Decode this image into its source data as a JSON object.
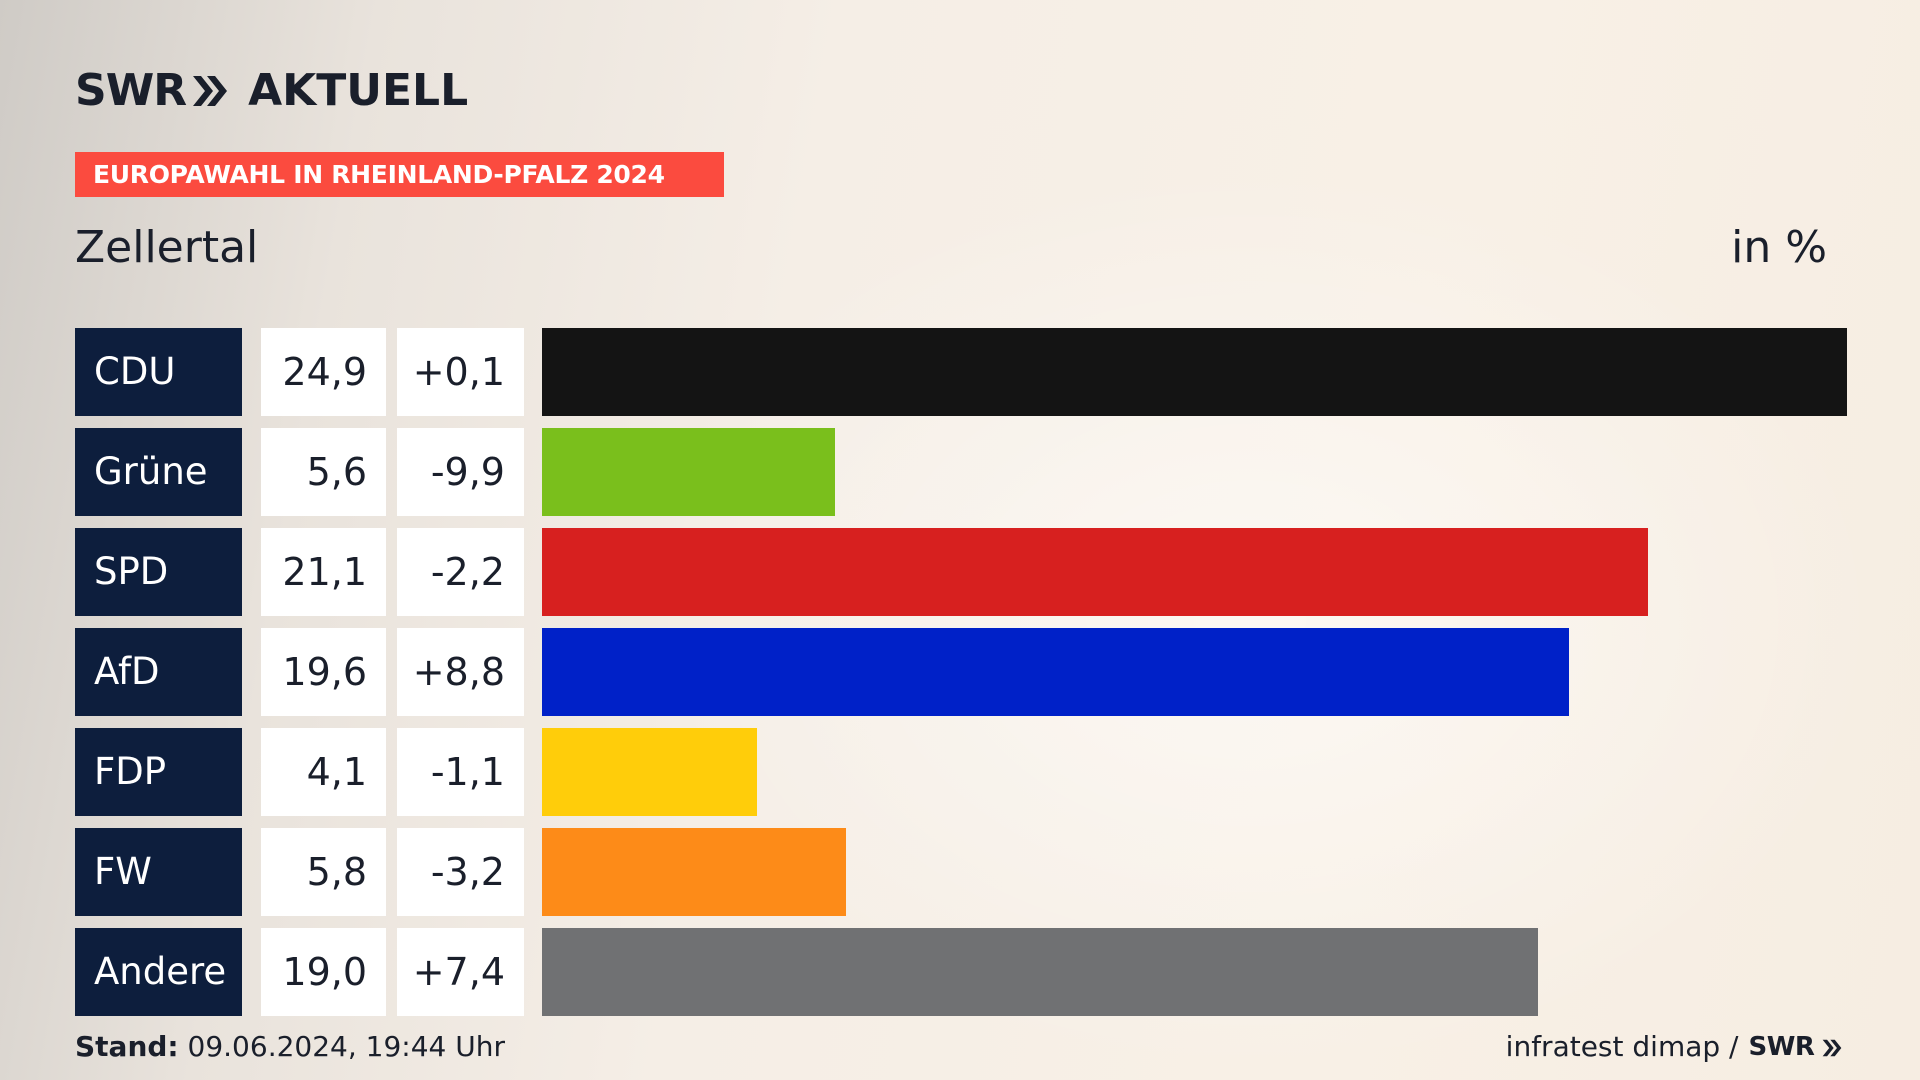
{
  "header": {
    "logo_text": "SWR",
    "logo_suffix": "AKTUELL",
    "banner": "EUROPAWAHL IN RHEINLAND-PFALZ 2024",
    "region": "Zellertal",
    "unit": "in %"
  },
  "colors": {
    "banner": "#fb4b3f",
    "party_label_bg": "#0d1e3d"
  },
  "chart_data": {
    "type": "bar",
    "orientation": "horizontal",
    "title": "Zellertal",
    "xlabel": "",
    "ylabel": "",
    "unit": "in %",
    "xlim": [
      0,
      24.9
    ],
    "categories": [
      "CDU",
      "Grüne",
      "SPD",
      "AfD",
      "FDP",
      "FW",
      "Andere"
    ],
    "values": [
      24.9,
      5.6,
      21.1,
      19.6,
      4.1,
      5.8,
      19.0
    ],
    "value_labels": [
      "24,9",
      "5,6",
      "21,1",
      "19,6",
      "4,1",
      "5,8",
      "19,0"
    ],
    "changes": [
      0.1,
      -9.9,
      -2.2,
      8.8,
      -1.1,
      -3.2,
      7.4
    ],
    "change_labels": [
      "+0,1",
      "-9,9",
      "-2,2",
      "+8,8",
      "-1,1",
      "-3,2",
      "+7,4"
    ],
    "colors": [
      "#141414",
      "#7abf1c",
      "#d7201f",
      "#0021c8",
      "#ffcd0a",
      "#fd8b18",
      "#707173"
    ],
    "grid": false,
    "legend": "none"
  },
  "footer": {
    "stand_label": "Stand:",
    "stand_value": "09.06.2024, 19:44 Uhr",
    "source": "infratest dimap /",
    "source_logo": "SWR"
  }
}
